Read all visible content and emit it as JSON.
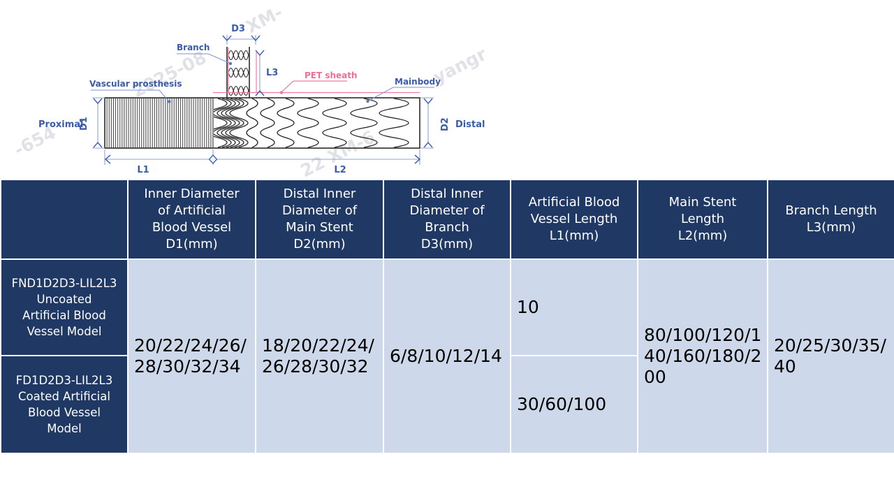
{
  "diagram": {
    "labels": {
      "d3": "D3",
      "branch": "Branch",
      "l3": "L3",
      "pet_sheath": "PET sheath",
      "mainbody": "Mainbody",
      "vascular_prosthesis": "Vascular prosthesis",
      "proximal": "Proximal",
      "d1": "D1",
      "d2": "D2",
      "distal": "Distal",
      "l1": "L1",
      "l2": "L2"
    },
    "watermarks": [
      "2025-08",
      "XM-",
      "yangr",
      "-654",
      "22 XM-6"
    ],
    "colors": {
      "label_blue": "#3a5caa",
      "dimension_blue": "#8fa3d4",
      "sheath_pink": "#ef7ba4",
      "outline_black": "#2b2b2b",
      "watermark_gray": "#b6bcc7"
    }
  },
  "table": {
    "colors": {
      "header_bg": "#1f3864",
      "body_bg": "#cdd9ea",
      "header_text": "#ffffff",
      "body_text": "#000000",
      "border": "#ffffff"
    },
    "headers": [
      "",
      "Inner Diameter\nof Artificial\nBlood Vessel\nD1(mm)",
      "Distal Inner\nDiameter of\nMain Stent\nD2(mm)",
      "Distal Inner\nDiameter of\nBranch\nD3(mm)",
      "Artificial Blood\nVessel Length\nL1(mm)",
      "Main Stent\nLength\nL2(mm)",
      "Branch Length\nL3(mm)"
    ],
    "rows": [
      {
        "model": "FND1D2D3-LIL2L3\nUncoated\nArtificial Blood\nVessel Model",
        "l1": "10"
      },
      {
        "model": "FD1D2D3-LIL2L3\nCoated Artificial\nBlood Vessel\nModel",
        "l1": "30/60/100"
      }
    ],
    "merged": {
      "d1": "20/22/24/26/28/30/32/34",
      "d2": "18/20/22/24/26/28/30/32",
      "d3": "6/8/10/12/14",
      "l2": "80/100/120/140/160/180/200",
      "l3": "20/25/30/35/40"
    }
  }
}
